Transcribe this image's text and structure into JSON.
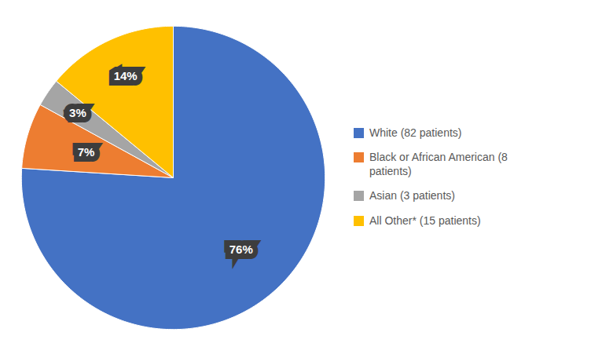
{
  "chart_data": {
    "type": "pie",
    "categories": [
      "White (82 patients)",
      "Black or African American (8\n patients)",
      "Asian (3 patients)",
      "All Other* (15 patients)"
    ],
    "values": [
      76,
      7,
      3,
      14
    ],
    "value_labels": [
      "76%",
      "7%",
      "3%",
      "14%"
    ],
    "colors": [
      "#4472C4",
      "#ED7D31",
      "#A5A5A5",
      "#FFC000"
    ],
    "data_labels": true,
    "legend": "right"
  }
}
